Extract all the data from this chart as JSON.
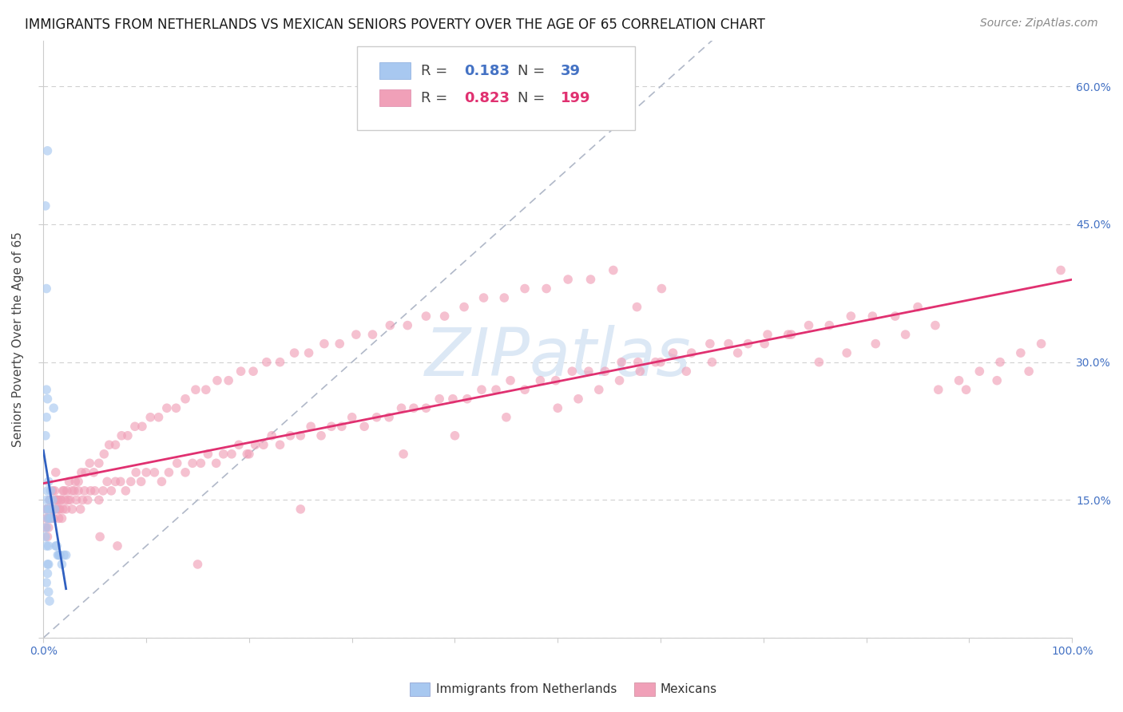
{
  "title": "IMMIGRANTS FROM NETHERLANDS VS MEXICAN SENIORS POVERTY OVER THE AGE OF 65 CORRELATION CHART",
  "source": "Source: ZipAtlas.com",
  "ylabel": "Seniors Poverty Over the Age of 65",
  "xlim": [
    0,
    1.0
  ],
  "ylim": [
    0,
    0.65
  ],
  "yticks": [
    0.0,
    0.15,
    0.3,
    0.45,
    0.6
  ],
  "xticks": [
    0.0,
    0.1,
    0.2,
    0.3,
    0.4,
    0.5,
    0.6,
    0.7,
    0.8,
    0.9,
    1.0
  ],
  "background_color": "#ffffff",
  "grid_color": "#d0d0d0",
  "watermark_text": "ZIPatlas",
  "watermark_color": "#dce8f5",
  "blue_dot_color": "#a8c8f0",
  "pink_dot_color": "#f0a0b8",
  "blue_line_color": "#3060c0",
  "pink_line_color": "#e03070",
  "diag_line_color": "#b0b8c8",
  "dot_size": 70,
  "dot_alpha": 0.65,
  "line_width": 2.0,
  "R_blue": "0.183",
  "N_blue": "39",
  "R_pink": "0.823",
  "N_pink": "199",
  "legend_label_blue": "Immigrants from Netherlands",
  "legend_label_pink": "Mexicans",
  "title_fontsize": 12,
  "source_fontsize": 10,
  "axis_label_fontsize": 11,
  "tick_fontsize": 10,
  "legend_fontsize": 13,
  "watermark_fontsize": 60,
  "blue_x": [
    0.002,
    0.003,
    0.003,
    0.004,
    0.004,
    0.005,
    0.005,
    0.006,
    0.006,
    0.007,
    0.007,
    0.008,
    0.009,
    0.01,
    0.011,
    0.012,
    0.013,
    0.014,
    0.015,
    0.016,
    0.002,
    0.003,
    0.004,
    0.005,
    0.003,
    0.002,
    0.004,
    0.003,
    0.005,
    0.006,
    0.002,
    0.003,
    0.004,
    0.018,
    0.02,
    0.022,
    0.003,
    0.004,
    0.005
  ],
  "blue_y": [
    0.14,
    0.12,
    0.15,
    0.13,
    0.16,
    0.14,
    0.17,
    0.13,
    0.15,
    0.14,
    0.16,
    0.13,
    0.15,
    0.25,
    0.14,
    0.1,
    0.1,
    0.09,
    0.09,
    0.09,
    0.22,
    0.24,
    0.07,
    0.08,
    0.38,
    0.47,
    0.53,
    0.06,
    0.05,
    0.04,
    0.11,
    0.1,
    0.08,
    0.08,
    0.09,
    0.09,
    0.27,
    0.26,
    0.1
  ],
  "pink_x": [
    0.003,
    0.004,
    0.005,
    0.006,
    0.007,
    0.008,
    0.009,
    0.01,
    0.011,
    0.012,
    0.013,
    0.014,
    0.015,
    0.016,
    0.017,
    0.018,
    0.019,
    0.02,
    0.022,
    0.024,
    0.026,
    0.028,
    0.03,
    0.032,
    0.034,
    0.036,
    0.038,
    0.04,
    0.043,
    0.046,
    0.05,
    0.054,
    0.058,
    0.062,
    0.066,
    0.07,
    0.075,
    0.08,
    0.085,
    0.09,
    0.095,
    0.1,
    0.108,
    0.115,
    0.122,
    0.13,
    0.138,
    0.145,
    0.153,
    0.16,
    0.168,
    0.175,
    0.183,
    0.19,
    0.198,
    0.206,
    0.214,
    0.222,
    0.23,
    0.24,
    0.25,
    0.26,
    0.27,
    0.28,
    0.29,
    0.3,
    0.312,
    0.324,
    0.336,
    0.348,
    0.36,
    0.372,
    0.385,
    0.398,
    0.412,
    0.426,
    0.44,
    0.454,
    0.468,
    0.483,
    0.498,
    0.514,
    0.53,
    0.546,
    0.562,
    0.578,
    0.595,
    0.612,
    0.63,
    0.648,
    0.666,
    0.685,
    0.704,
    0.724,
    0.744,
    0.764,
    0.785,
    0.806,
    0.828,
    0.85,
    0.003,
    0.005,
    0.007,
    0.009,
    0.011,
    0.013,
    0.015,
    0.017,
    0.019,
    0.021,
    0.023,
    0.025,
    0.028,
    0.031,
    0.034,
    0.037,
    0.041,
    0.045,
    0.049,
    0.054,
    0.059,
    0.064,
    0.07,
    0.076,
    0.082,
    0.089,
    0.096,
    0.104,
    0.112,
    0.12,
    0.129,
    0.138,
    0.148,
    0.158,
    0.169,
    0.18,
    0.192,
    0.204,
    0.217,
    0.23,
    0.244,
    0.258,
    0.273,
    0.288,
    0.304,
    0.32,
    0.337,
    0.354,
    0.372,
    0.39,
    0.409,
    0.428,
    0.448,
    0.468,
    0.489,
    0.51,
    0.532,
    0.554,
    0.577,
    0.601,
    0.625,
    0.65,
    0.675,
    0.701,
    0.727,
    0.754,
    0.781,
    0.809,
    0.838,
    0.867,
    0.897,
    0.927,
    0.958,
    0.989,
    0.87,
    0.89,
    0.91,
    0.93,
    0.95,
    0.97,
    0.5,
    0.52,
    0.54,
    0.56,
    0.58,
    0.6,
    0.004,
    0.35,
    0.4,
    0.45,
    0.002,
    0.006,
    0.008,
    0.012,
    0.055,
    0.072,
    0.15,
    0.2,
    0.25
  ],
  "pink_y": [
    0.13,
    0.14,
    0.12,
    0.15,
    0.13,
    0.14,
    0.16,
    0.13,
    0.14,
    0.15,
    0.14,
    0.15,
    0.13,
    0.14,
    0.15,
    0.13,
    0.14,
    0.16,
    0.14,
    0.15,
    0.15,
    0.14,
    0.16,
    0.15,
    0.16,
    0.14,
    0.15,
    0.16,
    0.15,
    0.16,
    0.16,
    0.15,
    0.16,
    0.17,
    0.16,
    0.17,
    0.17,
    0.16,
    0.17,
    0.18,
    0.17,
    0.18,
    0.18,
    0.17,
    0.18,
    0.19,
    0.18,
    0.19,
    0.19,
    0.2,
    0.19,
    0.2,
    0.2,
    0.21,
    0.2,
    0.21,
    0.21,
    0.22,
    0.21,
    0.22,
    0.22,
    0.23,
    0.22,
    0.23,
    0.23,
    0.24,
    0.23,
    0.24,
    0.24,
    0.25,
    0.25,
    0.25,
    0.26,
    0.26,
    0.26,
    0.27,
    0.27,
    0.28,
    0.27,
    0.28,
    0.28,
    0.29,
    0.29,
    0.29,
    0.3,
    0.3,
    0.3,
    0.31,
    0.31,
    0.32,
    0.32,
    0.32,
    0.33,
    0.33,
    0.34,
    0.34,
    0.35,
    0.35,
    0.35,
    0.36,
    0.14,
    0.13,
    0.15,
    0.14,
    0.16,
    0.15,
    0.14,
    0.15,
    0.16,
    0.15,
    0.16,
    0.17,
    0.16,
    0.17,
    0.17,
    0.18,
    0.18,
    0.19,
    0.18,
    0.19,
    0.2,
    0.21,
    0.21,
    0.22,
    0.22,
    0.23,
    0.23,
    0.24,
    0.24,
    0.25,
    0.25,
    0.26,
    0.27,
    0.27,
    0.28,
    0.28,
    0.29,
    0.29,
    0.3,
    0.3,
    0.31,
    0.31,
    0.32,
    0.32,
    0.33,
    0.33,
    0.34,
    0.34,
    0.35,
    0.35,
    0.36,
    0.37,
    0.37,
    0.38,
    0.38,
    0.39,
    0.39,
    0.4,
    0.36,
    0.38,
    0.29,
    0.3,
    0.31,
    0.32,
    0.33,
    0.3,
    0.31,
    0.32,
    0.33,
    0.34,
    0.27,
    0.28,
    0.29,
    0.4,
    0.27,
    0.28,
    0.29,
    0.3,
    0.31,
    0.32,
    0.25,
    0.26,
    0.27,
    0.28,
    0.29,
    0.3,
    0.11,
    0.2,
    0.22,
    0.24,
    0.12,
    0.13,
    0.14,
    0.18,
    0.11,
    0.1,
    0.08,
    0.2,
    0.14
  ]
}
